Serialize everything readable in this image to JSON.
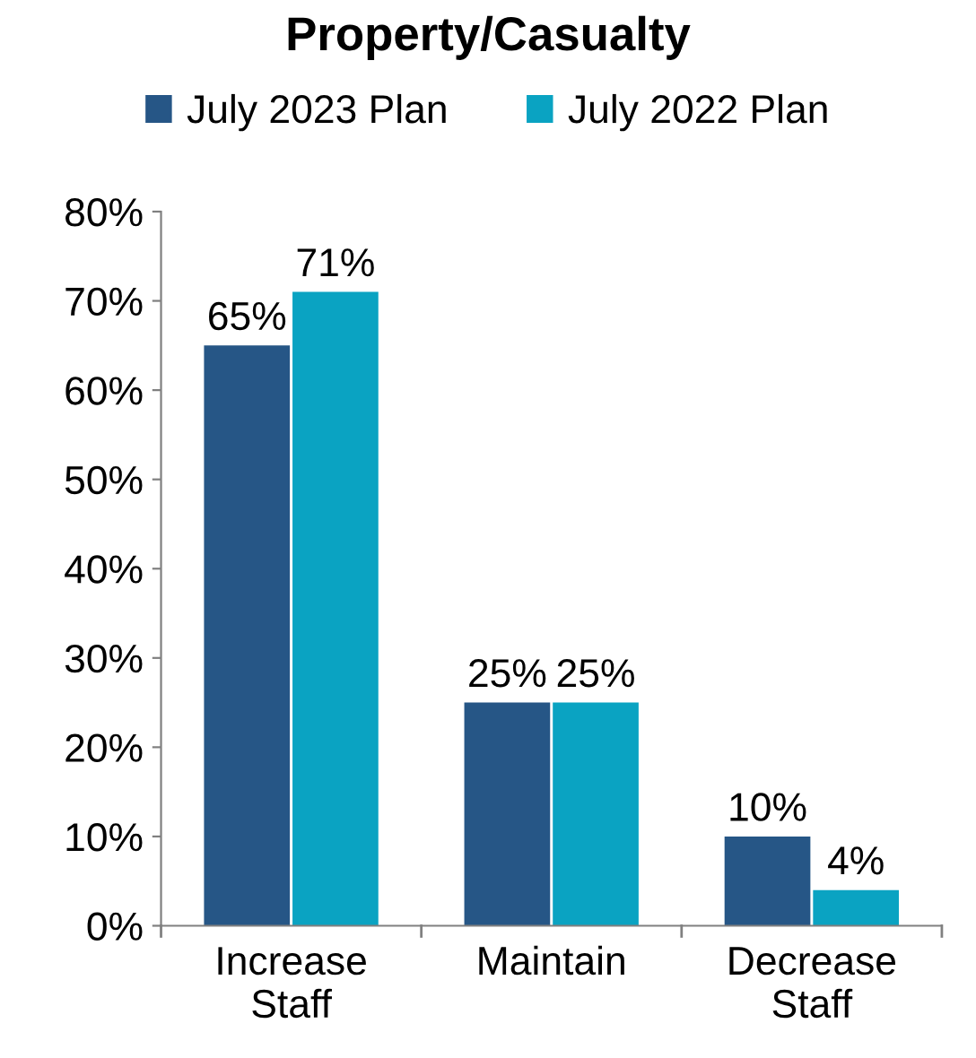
{
  "chart_data": {
    "type": "bar",
    "title": "Property/Casualty",
    "categories": [
      "Increase\nStaff",
      "Maintain",
      "Decrease\nStaff"
    ],
    "series": [
      {
        "name": "July 2023 Plan",
        "color": "#265686",
        "values": [
          65,
          25,
          10
        ],
        "value_labels": [
          "65%",
          "25%",
          "10%"
        ]
      },
      {
        "name": "July 2022 Plan",
        "color": "#0aa3c2",
        "values": [
          71,
          25,
          4
        ],
        "value_labels": [
          "71%",
          "25%",
          "4%"
        ]
      }
    ],
    "ylim": [
      0,
      80
    ],
    "yticks": [
      {
        "value": 0,
        "label": "0%"
      },
      {
        "value": 10,
        "label": "10%"
      },
      {
        "value": 20,
        "label": "20%"
      },
      {
        "value": 30,
        "label": "30%"
      },
      {
        "value": 40,
        "label": "40%"
      },
      {
        "value": 50,
        "label": "50%"
      },
      {
        "value": 60,
        "label": "60%"
      },
      {
        "value": 70,
        "label": "70%"
      },
      {
        "value": 80,
        "label": "80%"
      }
    ],
    "grid": false,
    "legend": "top"
  }
}
